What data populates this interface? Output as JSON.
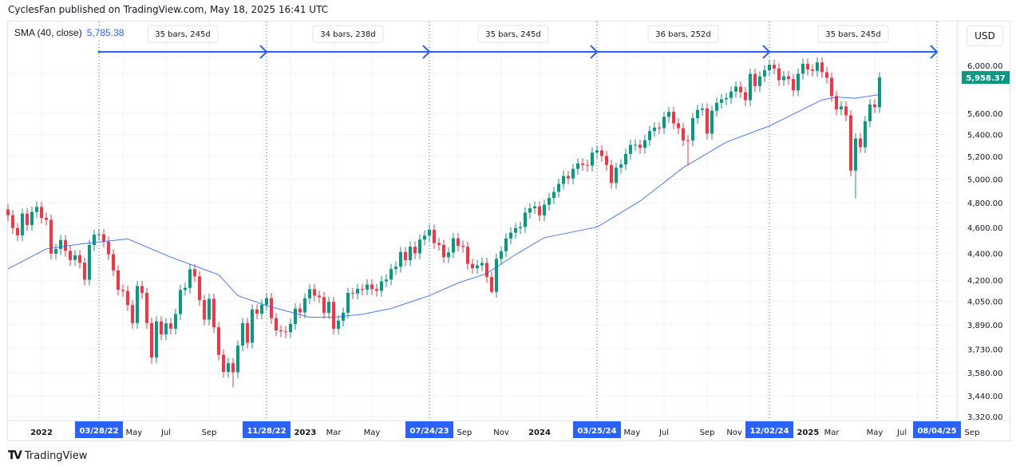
{
  "header": {
    "attribution": "CyclesFan published on TradingView.com, May 18, 2025 16:41 UTC"
  },
  "legend": {
    "indicator": "SMA (40, close)",
    "value": "5,785.38"
  },
  "currency_button": "USD",
  "footer": {
    "brand": "TradingView"
  },
  "colors": {
    "up": "#089981",
    "down": "#f23645",
    "sma": "#2962ff",
    "marker": "#2962ff",
    "grid": "#f0f3fa"
  },
  "chart_data": {
    "type": "candlestick",
    "interval": "1W",
    "price_scale": "log",
    "first_week": "2021-11-15",
    "closes": [
      4698,
      4595,
      4538,
      4712,
      4620,
      4725,
      4766,
      4677,
      4662,
      4397,
      4432,
      4500,
      4418,
      4349,
      4385,
      4329,
      4204,
      4463,
      4543,
      4546,
      4488,
      4392,
      4272,
      4132,
      4123,
      4024,
      3901,
      4158,
      4109,
      3901,
      3675,
      3912,
      3825,
      3899,
      3863,
      3962,
      4130,
      4145,
      4280,
      4228,
      4058,
      3924,
      4067,
      3873,
      3693,
      3586,
      3640,
      3583,
      3752,
      3901,
      3771,
      3993,
      3965,
      4026,
      4072,
      3934,
      3852,
      3845,
      3840,
      3895,
      3999,
      3973,
      4071,
      4136,
      4090,
      4079,
      3970,
      4046,
      3862,
      3917,
      3971,
      4109,
      4105,
      4137,
      4133,
      4169,
      4136,
      4124,
      4192,
      4205,
      4282,
      4299,
      4409,
      4348,
      4450,
      4399,
      4505,
      4536,
      4582,
      4478,
      4464,
      4370,
      4406,
      4515,
      4457,
      4450,
      4320,
      4288,
      4309,
      4327,
      4224,
      4117,
      4358,
      4415,
      4514,
      4559,
      4595,
      4604,
      4719,
      4755,
      4770,
      4697,
      4784,
      4840,
      4891,
      4959,
      5027,
      5006,
      5089,
      5137,
      5124,
      5117,
      5234,
      5254,
      5204,
      5123,
      4967,
      5100,
      5128,
      5223,
      5303,
      5305,
      5278,
      5347,
      5432,
      5465,
      5460,
      5567,
      5615,
      5505,
      5459,
      5346,
      5344,
      5554,
      5634,
      5648,
      5408,
      5626,
      5703,
      5738,
      5751,
      5815,
      5864,
      5808,
      5729,
      5995,
      5870,
      5969,
      6032,
      6090,
      6051,
      5930,
      5970,
      5942,
      5827,
      5997,
      6101,
      6040,
      6026,
      6115,
      6013,
      5955,
      5770,
      5639,
      5668,
      5581,
      5074,
      5363,
      5283,
      5525,
      5687,
      5660,
      5958.37
    ],
    "notable_lows": {
      "2022-10-10": 3491,
      "2024-08-05": 5119,
      "2025-04-07": 4835,
      "2023-10-23": 4104,
      "2022-06-13": 3637
    },
    "sma": {
      "name": "SMA (40, close)",
      "points": [
        [
          "2021-11-15",
          4283
        ],
        [
          "2022-01-10",
          4433
        ],
        [
          "2022-02-28",
          4470
        ],
        [
          "2022-05-09",
          4510
        ],
        [
          "2022-07-11",
          4370
        ],
        [
          "2022-09-19",
          4240
        ],
        [
          "2022-10-17",
          4090
        ],
        [
          "2022-11-28",
          4020
        ],
        [
          "2023-01-30",
          3940
        ],
        [
          "2023-03-06",
          3940
        ],
        [
          "2023-04-17",
          3960
        ],
        [
          "2023-05-29",
          4000
        ],
        [
          "2023-07-24",
          4090
        ],
        [
          "2023-09-04",
          4180
        ],
        [
          "2023-10-16",
          4250
        ],
        [
          "2023-11-27",
          4390
        ],
        [
          "2024-01-08",
          4520
        ],
        [
          "2024-03-25",
          4603
        ],
        [
          "2024-05-27",
          4814
        ],
        [
          "2024-07-29",
          5100
        ],
        [
          "2024-09-30",
          5330
        ],
        [
          "2024-12-02",
          5480
        ],
        [
          "2025-01-06",
          5593
        ],
        [
          "2025-02-17",
          5733
        ],
        [
          "2025-03-10",
          5760
        ],
        [
          "2025-04-07",
          5748
        ],
        [
          "2025-05-12",
          5785.38
        ]
      ]
    },
    "last_price_label": "5,958.37",
    "y_ticks": [
      {
        "v": 6000,
        "label": "6,000.00"
      },
      {
        "v": 5600,
        "label": "5,600.00"
      },
      {
        "v": 5400,
        "label": "5,400.00"
      },
      {
        "v": 5200,
        "label": "5,200.00"
      },
      {
        "v": 5000,
        "label": "5,000.00"
      },
      {
        "v": 4800,
        "label": "4,800.00"
      },
      {
        "v": 4600,
        "label": "4,600.00"
      },
      {
        "v": 4400,
        "label": "4,400.00"
      },
      {
        "v": 4200,
        "label": "4,200.00"
      },
      {
        "v": 4050,
        "label": "4,050.00"
      },
      {
        "v": 3890,
        "label": "3,890.00"
      },
      {
        "v": 3730,
        "label": "3,730.00"
      },
      {
        "v": 3580,
        "label": "3,580.00"
      },
      {
        "v": 3440,
        "label": "3,440.00"
      },
      {
        "v": 3320,
        "label": "3,320.00"
      }
    ],
    "x_ticks": [
      {
        "d": "2022-01-03",
        "label": "2022",
        "bold": true
      },
      {
        "d": "2022-05-02",
        "label": "May"
      },
      {
        "d": "2022-07-04",
        "label": "Jul"
      },
      {
        "d": "2022-09-05",
        "label": "Sep"
      },
      {
        "d": "2023-01-02",
        "label": "2023",
        "bold": true
      },
      {
        "d": "2023-03-06",
        "label": "Mar"
      },
      {
        "d": "2023-05-01",
        "label": "May"
      },
      {
        "d": "2023-09-04",
        "label": "Sep"
      },
      {
        "d": "2023-11-06",
        "label": "Nov"
      },
      {
        "d": "2024-01-01",
        "label": "2024",
        "bold": true
      },
      {
        "d": "2024-05-06",
        "label": "May"
      },
      {
        "d": "2024-07-01",
        "label": "Jul"
      },
      {
        "d": "2024-09-02",
        "label": "Sep"
      },
      {
        "d": "2024-11-04",
        "label": "Nov"
      },
      {
        "d": "2025-01-06",
        "label": "2025",
        "bold": true
      },
      {
        "d": "2025-03-03",
        "label": "Mar"
      },
      {
        "d": "2025-05-05",
        "label": "May"
      },
      {
        "d": "2025-07-07",
        "label": "Jul"
      },
      {
        "d": "2025-09-01",
        "label": "Sep"
      }
    ],
    "cycle_markers": [
      {
        "d": "2022-03-28",
        "label": "03/28/22"
      },
      {
        "d": "2022-11-28",
        "label": "11/28/22"
      },
      {
        "d": "2023-07-24",
        "label": "07/24/23"
      },
      {
        "d": "2024-03-25",
        "label": "03/25/24"
      },
      {
        "d": "2024-12-02",
        "label": "12/02/24"
      },
      {
        "d": "2025-08-04",
        "label": "08/04/25"
      }
    ],
    "cycle_measurements": [
      "35 bars, 245d",
      "34 bars, 238d",
      "35 bars, 245d",
      "36 bars, 252d",
      "35 bars, 245d"
    ]
  }
}
